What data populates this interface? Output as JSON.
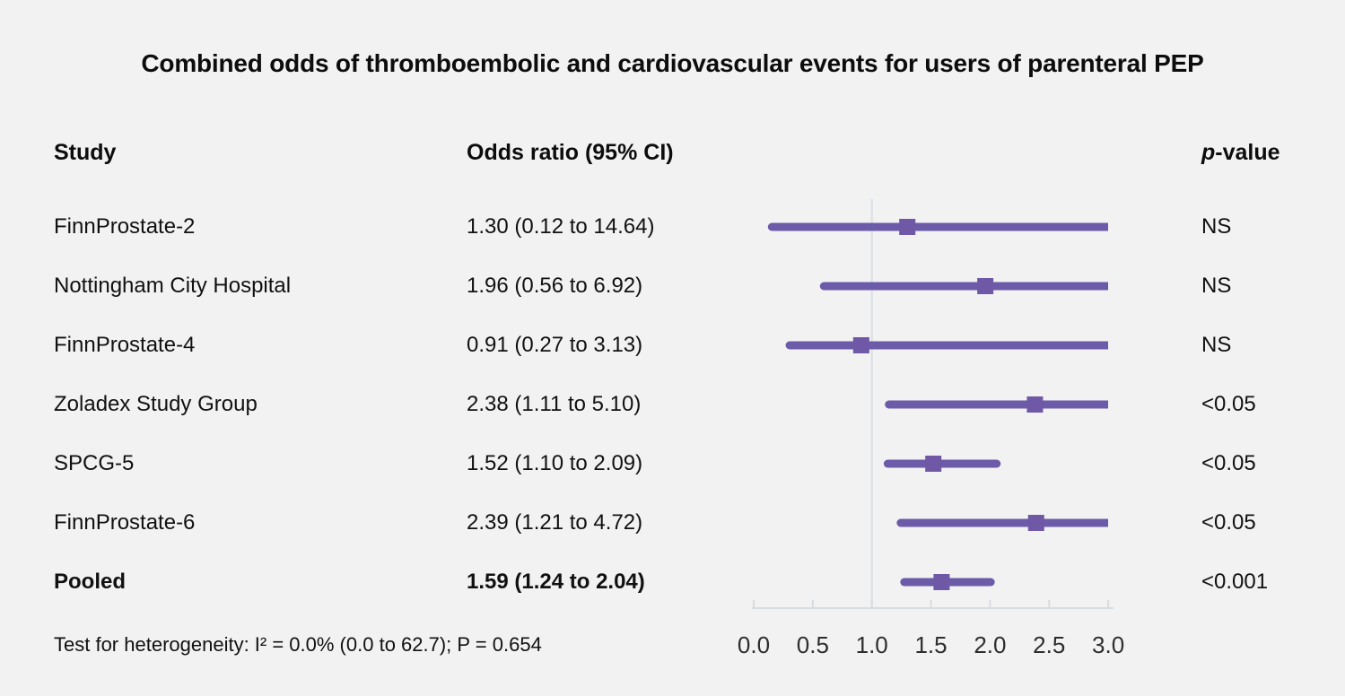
{
  "title": "Combined odds of thromboembolic and cardiovascular events for users of parenteral PEP",
  "chart_data": {
    "type": "forest",
    "title": "Combined odds of thromboembolic and cardiovascular events for users of parenteral PEP",
    "columns": {
      "study": "Study",
      "odds_ratio": "Odds ratio (95% CI)",
      "p_italic": "p",
      "p_rest": "-value"
    },
    "axis": {
      "xlim": [
        0.0,
        3.0
      ],
      "ticks": [
        0.0,
        0.5,
        1.0,
        1.5,
        2.0,
        2.5,
        3.0
      ],
      "tick_labels": [
        "0.0",
        "0.5",
        "1.0",
        "1.5",
        "2.0",
        "2.5",
        "3.0"
      ],
      "reference_line": 1.0
    },
    "rows": [
      {
        "study": "FinnProstate-2",
        "or_text": "1.30 (0.12 to 14.64)",
        "estimate": 1.3,
        "ci_low": 0.12,
        "ci_high": 14.64,
        "p_value": "NS",
        "bold": false
      },
      {
        "study": "Nottingham City Hospital",
        "or_text": "1.96 (0.56 to 6.92)",
        "estimate": 1.96,
        "ci_low": 0.56,
        "ci_high": 6.92,
        "p_value": "NS",
        "bold": false
      },
      {
        "study": "FinnProstate-4",
        "or_text": "0.91 (0.27 to 3.13)",
        "estimate": 0.91,
        "ci_low": 0.27,
        "ci_high": 3.13,
        "p_value": "NS",
        "bold": false
      },
      {
        "study": "Zoladex Study Group",
        "or_text": "2.38 (1.11 to 5.10)",
        "estimate": 2.38,
        "ci_low": 1.11,
        "ci_high": 5.1,
        "p_value": "<0.05",
        "bold": false
      },
      {
        "study": "SPCG-5",
        "or_text": "1.52 (1.10 to 2.09)",
        "estimate": 1.52,
        "ci_low": 1.1,
        "ci_high": 2.09,
        "p_value": "<0.05",
        "bold": false
      },
      {
        "study": "FinnProstate-6",
        "or_text": "2.39 (1.21 to 4.72)",
        "estimate": 2.39,
        "ci_low": 1.21,
        "ci_high": 4.72,
        "p_value": "<0.05",
        "bold": false
      },
      {
        "study": "Pooled",
        "or_text": "1.59 (1.24 to 2.04)",
        "estimate": 1.59,
        "ci_low": 1.24,
        "ci_high": 2.04,
        "p_value": "<0.001",
        "bold": true
      }
    ],
    "footnote": "Test for heterogeneity: I² = 0.0% (0.0 to 62.7); P = 0.654"
  },
  "colors": {
    "background": "#f2f2f2",
    "ci_line": "#6b5ba8",
    "marker": "#6f58a6",
    "axis_line": "#d7dce1",
    "reference_line": "#dadee3",
    "text": "#111111"
  }
}
